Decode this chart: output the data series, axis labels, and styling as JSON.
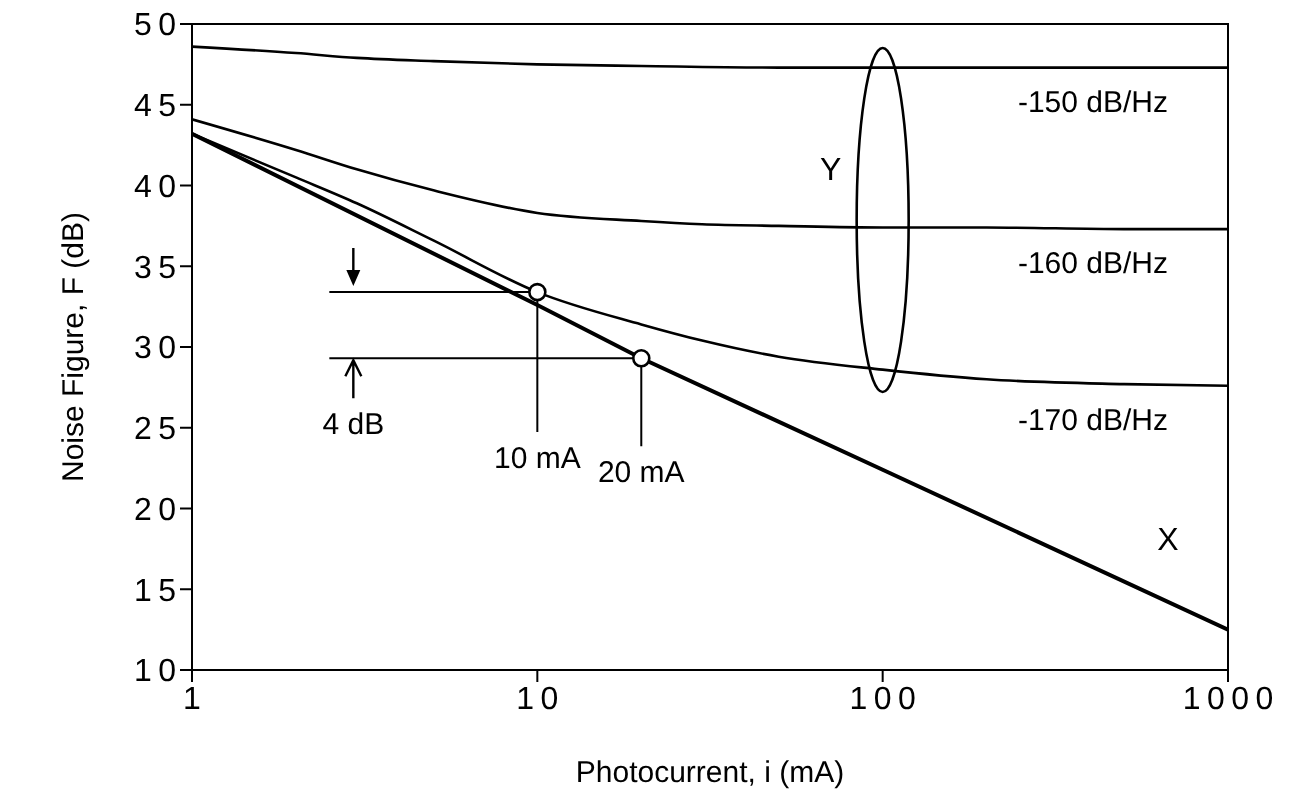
{
  "chart_data": {
    "type": "line",
    "xlabel": "Photocurrent, i (mA)",
    "ylabel": "Noise Figure, F (dB)",
    "log": "x",
    "xlim": [
      1,
      1000
    ],
    "xticks": [
      1,
      10,
      100,
      1000
    ],
    "ylim": [
      10,
      50
    ],
    "yticks": [
      10,
      15,
      20,
      25,
      30,
      35,
      40,
      45,
      50
    ],
    "grid": false,
    "series": [
      {
        "name": "-150 dB/Hz",
        "color": "#000000",
        "x": [
          1,
          2,
          3,
          5,
          10,
          20,
          50,
          100,
          200,
          500,
          1000
        ],
        "values": [
          48.6,
          48.2,
          47.9,
          47.7,
          47.5,
          47.4,
          47.3,
          47.3,
          47.3,
          47.3,
          47.3
        ]
      },
      {
        "name": "-160 dB/Hz",
        "color": "#000000",
        "x": [
          1,
          2,
          3,
          5,
          10,
          20,
          30,
          50,
          100,
          200,
          500,
          1000
        ],
        "values": [
          44.1,
          42.2,
          41.0,
          39.7,
          38.3,
          37.8,
          37.6,
          37.5,
          37.4,
          37.4,
          37.3,
          37.3
        ]
      },
      {
        "name": "-170 dB/Hz",
        "color": "#000000",
        "x": [
          1,
          2,
          3,
          5,
          10,
          20,
          30,
          50,
          100,
          200,
          500,
          1000
        ],
        "values": [
          43.2,
          40.5,
          38.9,
          36.6,
          33.4,
          31.4,
          30.4,
          29.4,
          28.6,
          28.0,
          27.7,
          27.6
        ]
      },
      {
        "type": "line",
        "color": "#000000",
        "x": [
          1,
          10,
          20,
          100,
          1000
        ],
        "values": [
          43.2,
          32.6,
          29.3,
          22.4,
          12.5
        ]
      },
      {
        "type": "scatter",
        "color": "#000000",
        "marker": "circle",
        "x": [
          10,
          20
        ],
        "values": [
          33.4,
          29.3
        ]
      }
    ],
    "annotations": [
      {
        "text": "10 mA",
        "x": 10,
        "y": 33.4
      },
      {
        "text": "20 mA",
        "x": 20,
        "y": 29.3
      },
      "4 dB",
      "X",
      "Y"
    ]
  }
}
